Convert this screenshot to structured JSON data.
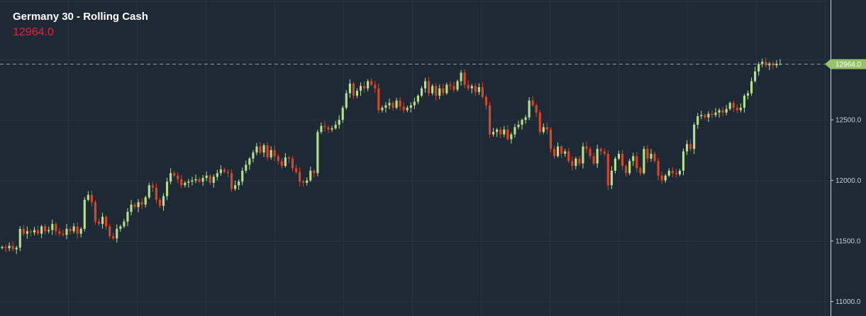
{
  "header": {
    "instrument": "Germany 30 - Rolling Cash",
    "last_price": "12964.0"
  },
  "colors": {
    "background": "#1e2936",
    "grid": "#263342",
    "axis": "#d0d4d9",
    "up": "#b4e08a",
    "down": "#e0431f",
    "price_text": "#e8203c",
    "current_price_label": "#95c36a"
  },
  "chart_data": {
    "type": "candlestick",
    "title": "Germany 30 - Rolling Cash",
    "xlabel": "",
    "ylabel": "",
    "ylim": [
      10880,
      13490
    ],
    "y_ticks": [
      "11000.0",
      "11500.0",
      "12000.0",
      "12500.0",
      "12964.0"
    ],
    "grid": true,
    "current_price": 12964.0,
    "current_price_label": "12964.0",
    "closes": [
      11450,
      11440,
      11460,
      11430,
      11445,
      11600,
      11560,
      11580,
      11570,
      11590,
      11560,
      11620,
      11580,
      11590,
      11640,
      11580,
      11560,
      11550,
      11600,
      11580,
      11620,
      11560,
      11600,
      11840,
      11880,
      11820,
      11660,
      11640,
      11700,
      11620,
      11540,
      11520,
      11600,
      11620,
      11660,
      11740,
      11800,
      11780,
      11820,
      11800,
      11860,
      11960,
      11940,
      11840,
      11790,
      11870,
      11990,
      12060,
      12040,
      12010,
      11960,
      11980,
      11990,
      12000,
      12010,
      11990,
      12020,
      12040,
      11980,
      12030,
      12060,
      12090,
      12070,
      12060,
      11930,
      11960,
      11990,
      12080,
      12130,
      12180,
      12230,
      12280,
      12230,
      12290,
      12190,
      12250,
      12200,
      12160,
      12120,
      12190,
      12180,
      12100,
      12070,
      11990,
      11980,
      12000,
      12080,
      12060,
      12400,
      12450,
      12440,
      12420,
      12430,
      12460,
      12500,
      12600,
      12720,
      12800,
      12700,
      12740,
      12780,
      12760,
      12820,
      12790,
      12760,
      12580,
      12600,
      12620,
      12640,
      12600,
      12660,
      12610,
      12580,
      12600,
      12620,
      12650,
      12700,
      12760,
      12820,
      12720,
      12780,
      12700,
      12760,
      12720,
      12790,
      12780,
      12750,
      12820,
      12890,
      12790,
      12760,
      12780,
      12730,
      12770,
      12690,
      12620,
      12380,
      12400,
      12420,
      12380,
      12420,
      12340,
      12380,
      12440,
      12460,
      12500,
      12520,
      12660,
      12620,
      12560,
      12400,
      12440,
      12420,
      12260,
      12200,
      12280,
      12220,
      12240,
      12160,
      12120,
      12180,
      12140,
      12280,
      12260,
      12200,
      12140,
      12260,
      12240,
      12220,
      11960,
      12080,
      12180,
      12220,
      12120,
      12060,
      12160,
      12200,
      12100,
      12060,
      12260,
      12180,
      12220,
      12160,
      12040,
      12000,
      12040,
      12080,
      12060,
      12050,
      12080,
      12240,
      12300,
      12260,
      12460,
      12530,
      12540,
      12520,
      12550,
      12540,
      12560,
      12580,
      12560,
      12590,
      12640,
      12600,
      12580,
      12600,
      12700,
      12720,
      12820,
      12900,
      12960,
      12980,
      12950,
      12966,
      12950,
      12964,
      12964
    ]
  }
}
